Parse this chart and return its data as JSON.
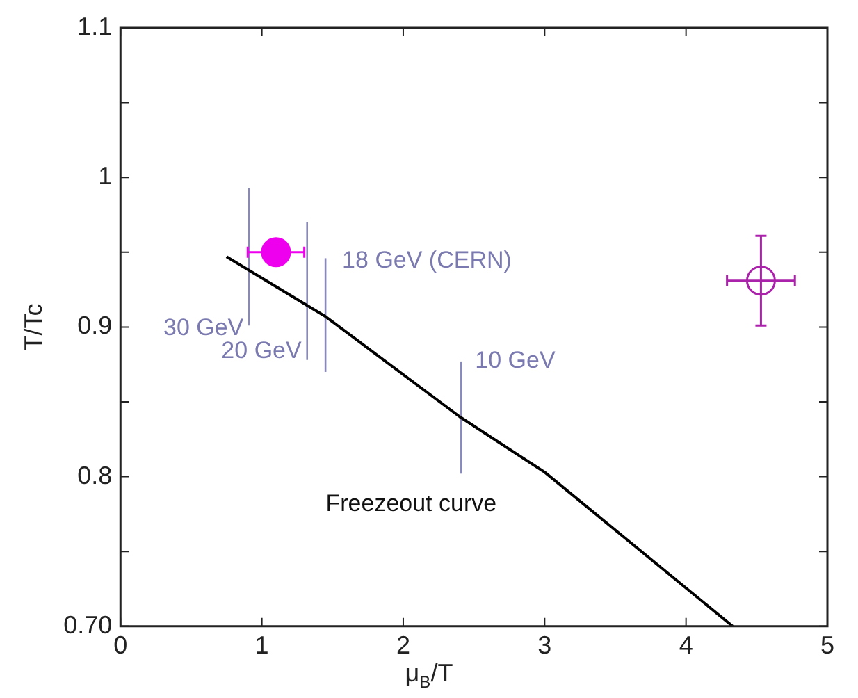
{
  "chart_data": {
    "type": "scatter",
    "xlabel": "μ$_{B}$/T",
    "ylabel": "T/Tc",
    "xlim": [
      0,
      5
    ],
    "xticks": [
      0,
      1,
      2,
      3,
      4,
      5
    ],
    "ylim": [
      0.7,
      1.1
    ],
    "yticks": [
      {
        "value": 0.7,
        "label": "0.70"
      },
      {
        "value": 0.75,
        "label": null
      },
      {
        "value": 0.8,
        "label": "0.8"
      },
      {
        "value": 0.85,
        "label": null
      },
      {
        "value": 0.9,
        "label": "0.9"
      },
      {
        "value": 0.95,
        "label": null
      },
      {
        "value": 1,
        "label": "1"
      },
      {
        "value": 1.05,
        "label": null
      },
      {
        "value": 1.1,
        "label": "1.1"
      }
    ],
    "grid": false,
    "legend": false,
    "marker": "circle",
    "series": [
      {
        "type": "line",
        "marker": "none",
        "color": "#000000",
        "x": [
          0.75,
          1.45,
          2.4,
          3.0,
          4.33
        ],
        "values": [
          0.947,
          0.907,
          0.84,
          0.803,
          0.7
        ]
      },
      {
        "type": "line",
        "marker": "none",
        "color": "#8888bb",
        "x": [
          0.91,
          0.91
        ],
        "values": [
          0.901,
          0.993
        ]
      },
      {
        "type": "line",
        "marker": "none",
        "color": "#8888bb",
        "x": [
          1.32,
          1.32
        ],
        "values": [
          0.878,
          0.97
        ]
      },
      {
        "type": "line",
        "marker": "none",
        "color": "#8888bb",
        "x": [
          1.45,
          1.45
        ],
        "values": [
          0.87,
          0.946
        ]
      },
      {
        "type": "line",
        "marker": "none",
        "color": "#8888bb",
        "x": [
          2.41,
          2.41
        ],
        "values": [
          0.802,
          0.877
        ]
      },
      {
        "color": "#ee00ee",
        "x": [
          1.1
        ],
        "values": [
          0.95
        ],
        "xerrors": [
          0.2
        ]
      },
      {
        "color": "#aa22aa",
        "x": [
          4.53
        ],
        "values": [
          0.931
        ],
        "xerrors": [
          0.24
        ],
        "errors": [
          0.03
        ]
      }
    ],
    "annotations": [
      {
        "text": "30 GeV",
        "x": 0.91,
        "y": 0.901
      },
      {
        "text": "20 GeV",
        "x": 1.32,
        "y": 0.878
      },
      {
        "text": "18 GeV (CERN)",
        "x": 1.45,
        "y": 0.946
      },
      {
        "text": "10 GeV",
        "x": 2.41,
        "y": 0.877
      },
      {
        "text": "Freezeout curve",
        "x": 2.41,
        "y": 0.802
      }
    ]
  }
}
